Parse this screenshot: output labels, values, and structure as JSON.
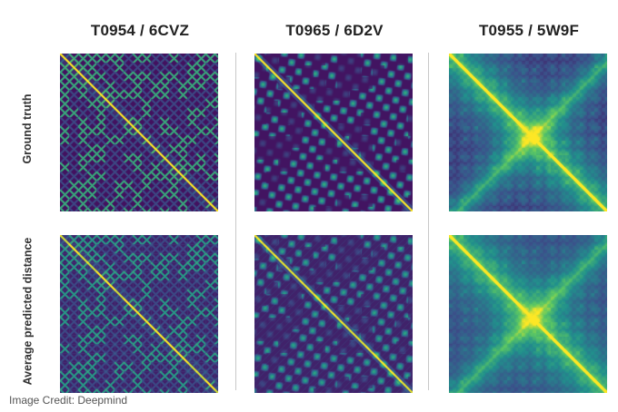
{
  "columns": [
    {
      "title": "T0954 / 6CVZ",
      "style": "sparse",
      "period": 10,
      "seed": 3
    },
    {
      "title": "T0965 / 6D2V",
      "style": "blobs",
      "period": 13,
      "seed": 7
    },
    {
      "title": "T0955 / 5W9F",
      "style": "smooth",
      "period": 16,
      "seed": 11
    }
  ],
  "rows": [
    {
      "label": "Ground truth",
      "kind": "truth"
    },
    {
      "label": "Average predicted distance",
      "kind": "predicted"
    }
  ],
  "colormap": [
    "#440154",
    "#3b528b",
    "#21918c",
    "#5ec962",
    "#fde725"
  ],
  "credit": "Image Credit: Deepmind"
}
